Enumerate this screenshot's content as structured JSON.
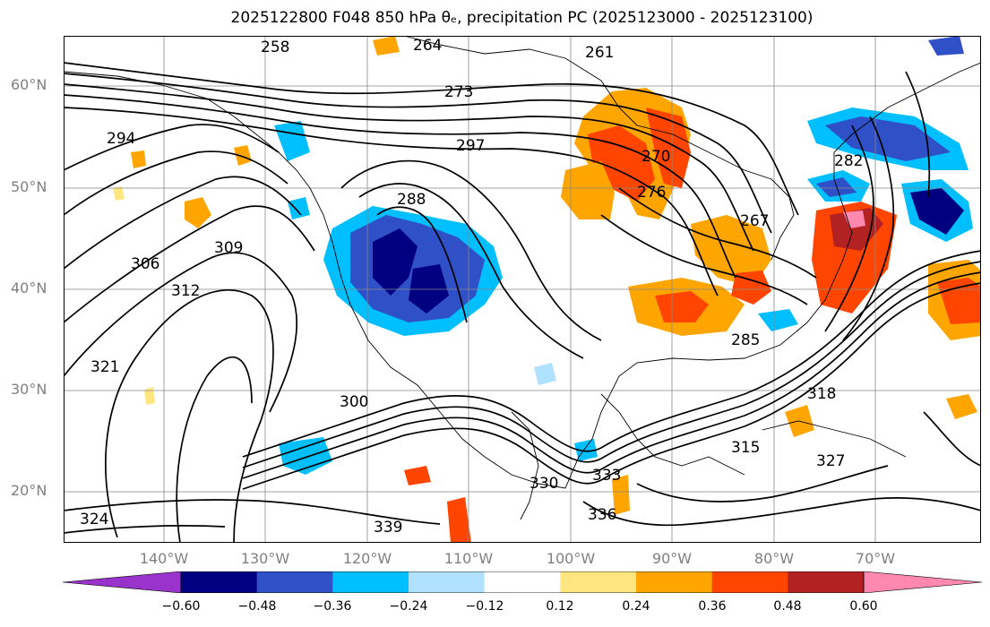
{
  "title": "2025122800 F048 850 hPa θₑ, precipitation PC (2025123000 - 2025123100)",
  "axes": {
    "lat_labels": [
      "60°N",
      "50°N",
      "40°N",
      "30°N",
      "20°N"
    ],
    "lon_labels": [
      "140°W",
      "130°W",
      "120°W",
      "110°W",
      "100°W",
      "90°W",
      "80°W",
      "70°W"
    ]
  },
  "contour_labels": [
    "258",
    "264",
    "261",
    "273",
    "276",
    "270",
    "267",
    "282",
    "285",
    "288",
    "294",
    "297",
    "300",
    "306",
    "309",
    "312",
    "315",
    "318",
    "321",
    "324",
    "327",
    "330",
    "333",
    "336",
    "339"
  ],
  "colorbar": {
    "ticks": [
      "−0.60",
      "−0.48",
      "−0.36",
      "−0.24",
      "−0.12",
      "0.12",
      "0.24",
      "0.36",
      "0.48",
      "0.60"
    ],
    "colors": [
      "#9933cc",
      "#000080",
      "#3050c8",
      "#00bfff",
      "#b0e2ff",
      "#ffffff",
      "#ffe680",
      "#ffa500",
      "#ff4500",
      "#b22222",
      "#ff88b0"
    ]
  }
}
